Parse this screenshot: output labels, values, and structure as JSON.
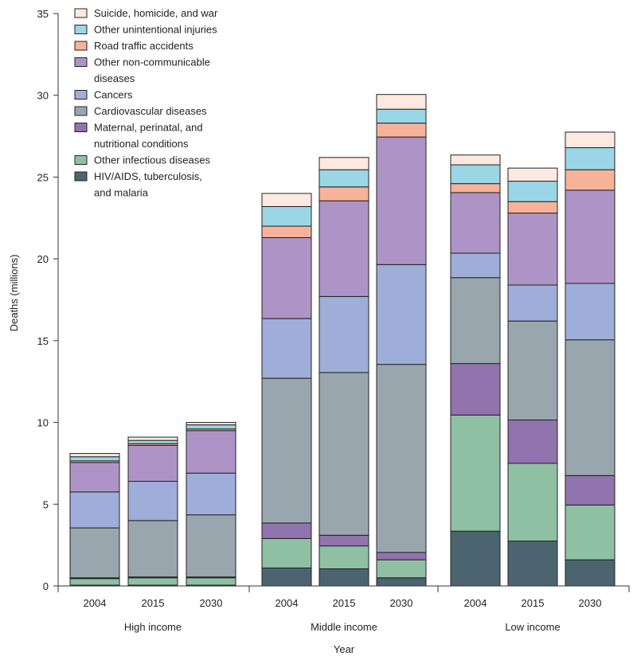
{
  "chart_data": {
    "type": "bar",
    "stacked": true,
    "title": "",
    "xlabel": "Year",
    "ylabel": "Deaths (millions)",
    "ylim": [
      0,
      35
    ],
    "yticks": [
      0,
      5,
      10,
      15,
      20,
      25,
      30,
      35
    ],
    "grid": false,
    "legend_position": "top-left",
    "groups": [
      {
        "name": "High income",
        "categories": [
          "2004",
          "2015",
          "2030"
        ]
      },
      {
        "name": "Middle income",
        "categories": [
          "2004",
          "2015",
          "2030"
        ]
      },
      {
        "name": "Low income",
        "categories": [
          "2004",
          "2015",
          "2030"
        ]
      }
    ],
    "series": [
      {
        "name": "HIV/AIDS, tuberculosis, and malaria",
        "color": "#4b6470",
        "values": [
          0.05,
          0.05,
          0.05,
          1.1,
          1.05,
          0.5,
          3.35,
          2.75,
          1.6
        ]
      },
      {
        "name": "Other infectious diseases",
        "color": "#90c0a4",
        "values": [
          0.4,
          0.45,
          0.45,
          1.8,
          1.4,
          1.1,
          7.1,
          4.75,
          3.35
        ]
      },
      {
        "name": "Maternal, perinatal, and nutritional conditions",
        "color": "#9173ad",
        "values": [
          0.05,
          0.05,
          0.05,
          0.95,
          0.65,
          0.45,
          3.15,
          2.65,
          1.8
        ]
      },
      {
        "name": "Cardiovascular diseases",
        "color": "#9aa6ad",
        "values": [
          3.05,
          3.45,
          3.8,
          8.85,
          9.95,
          11.5,
          5.25,
          6.05,
          8.3
        ]
      },
      {
        "name": "Cancers",
        "color": "#9eaed8",
        "values": [
          2.2,
          2.4,
          2.55,
          3.65,
          4.65,
          6.1,
          1.5,
          2.2,
          3.45
        ]
      },
      {
        "name": "Other non-communicable diseases",
        "color": "#ae94c6",
        "values": [
          1.8,
          2.2,
          2.6,
          4.95,
          5.85,
          7.8,
          3.7,
          4.4,
          5.7
        ]
      },
      {
        "name": "Road traffic accidents",
        "color": "#f7b39a",
        "values": [
          0.1,
          0.1,
          0.1,
          0.7,
          0.85,
          0.85,
          0.55,
          0.7,
          1.25
        ]
      },
      {
        "name": "Other unintentional injuries",
        "color": "#9ad6e6",
        "values": [
          0.25,
          0.2,
          0.25,
          1.2,
          1.05,
          0.85,
          1.15,
          1.25,
          1.35
        ]
      },
      {
        "name": "Suicide, homicide, and war",
        "color": "#fde9df",
        "values": [
          0.2,
          0.2,
          0.15,
          0.8,
          0.75,
          0.9,
          0.6,
          0.8,
          0.95
        ]
      }
    ],
    "legend_lines": [
      {
        "series": 8,
        "lines": [
          "Suicide, homicide, and war"
        ]
      },
      {
        "series": 7,
        "lines": [
          "Other unintentional injuries"
        ]
      },
      {
        "series": 6,
        "lines": [
          "Road traffic accidents"
        ]
      },
      {
        "series": 5,
        "lines": [
          "Other non-communicable",
          "diseases"
        ]
      },
      {
        "series": 4,
        "lines": [
          "Cancers"
        ]
      },
      {
        "series": 3,
        "lines": [
          "Cardiovascular diseases"
        ]
      },
      {
        "series": 2,
        "lines": [
          "Maternal, perinatal, and",
          "nutritional conditions"
        ]
      },
      {
        "series": 1,
        "lines": [
          "Other infectious diseases"
        ]
      },
      {
        "series": 0,
        "lines": [
          "HIV/AIDS, tuberculosis,",
          "and malaria"
        ]
      }
    ]
  }
}
